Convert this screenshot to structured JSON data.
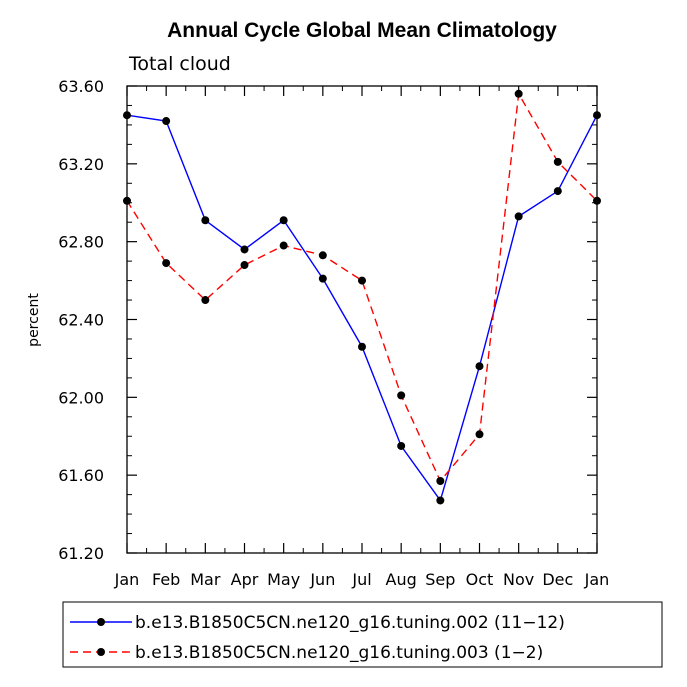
{
  "chart_data": {
    "type": "line",
    "title": "Annual Cycle Global Mean Climatology",
    "subtitle": "Total cloud",
    "ylabel": "percent",
    "xlabel": "",
    "categories": [
      "Jan",
      "Feb",
      "Mar",
      "Apr",
      "May",
      "Jun",
      "Jul",
      "Aug",
      "Sep",
      "Oct",
      "Nov",
      "Dec",
      "Jan"
    ],
    "ylim": [
      61.2,
      63.6
    ],
    "yticks": [
      "61.20",
      "61.60",
      "62.00",
      "62.40",
      "62.80",
      "63.20",
      "63.60"
    ],
    "series": [
      {
        "name": "b.e13.B1850C5CN.ne120_g16.tuning.002 (11−12)",
        "color": "#0000ff",
        "dash": "solid",
        "values": [
          63.45,
          63.42,
          62.91,
          62.76,
          62.91,
          62.61,
          62.26,
          61.75,
          61.47,
          62.16,
          62.93,
          63.06,
          63.45
        ]
      },
      {
        "name": "b.e13.B1850C5CN.ne120_g16.tuning.003 (1−2)",
        "color": "#ff0000",
        "dash": "dashed",
        "values": [
          63.01,
          62.69,
          62.5,
          62.68,
          62.78,
          62.73,
          62.6,
          62.01,
          61.57,
          61.81,
          63.56,
          63.21,
          63.01
        ]
      }
    ],
    "grid": false,
    "legend_position": "bottom"
  }
}
